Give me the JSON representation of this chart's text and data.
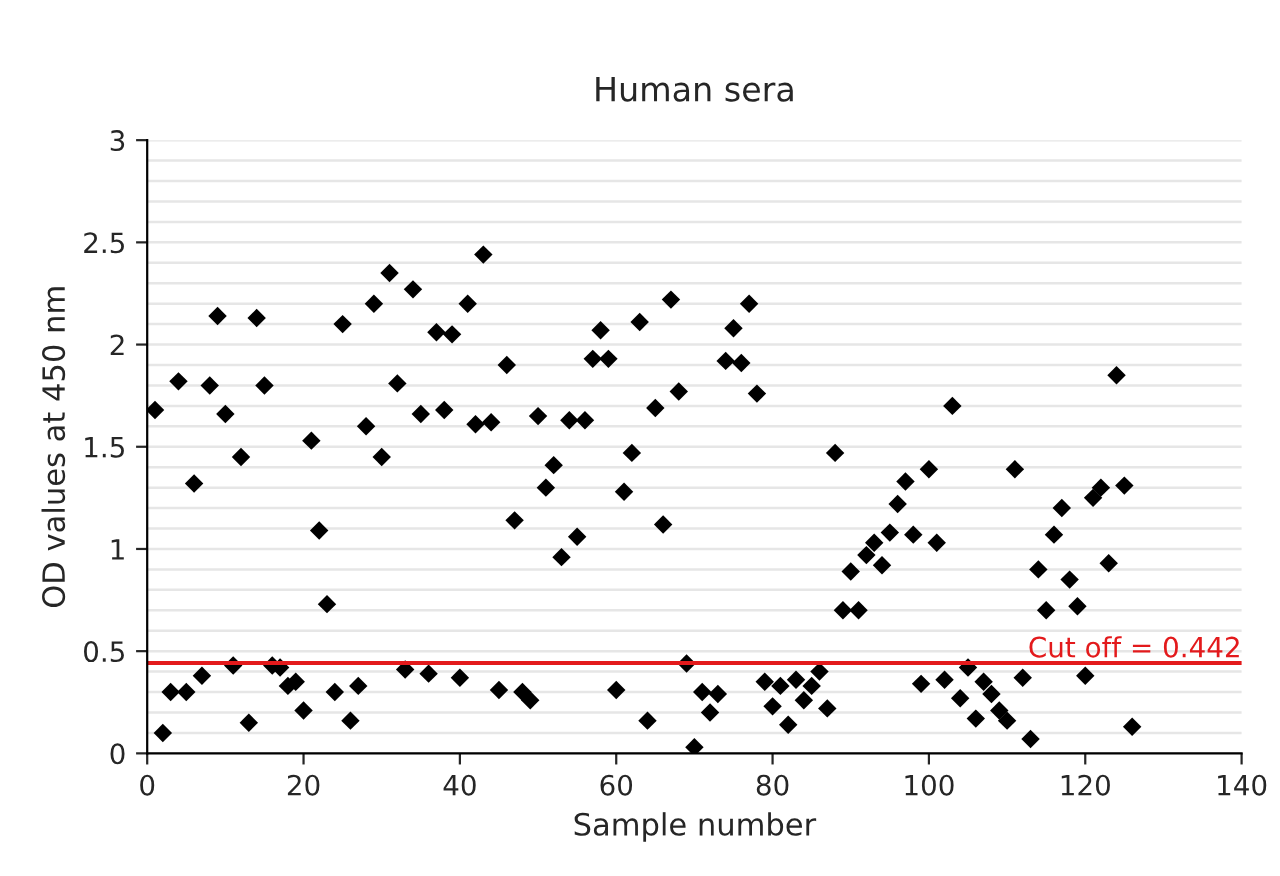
{
  "chart_data": {
    "type": "scatter",
    "title": "Human sera",
    "xlabel": "Sample number",
    "ylabel": "OD values at 450 nm",
    "x": [
      1,
      2,
      3,
      4,
      5,
      6,
      7,
      8,
      9,
      10,
      11,
      12,
      13,
      14,
      15,
      16,
      17,
      18,
      19,
      20,
      21,
      22,
      23,
      24,
      25,
      26,
      27,
      28,
      29,
      30,
      31,
      32,
      33,
      34,
      35,
      36,
      37,
      38,
      39,
      40,
      41,
      42,
      43,
      44,
      45,
      46,
      47,
      48,
      49,
      50,
      51,
      52,
      53,
      54,
      55,
      56,
      57,
      58,
      59,
      60,
      61,
      62,
      63,
      64,
      65,
      66,
      67,
      68,
      69,
      70,
      71,
      72,
      73,
      74,
      75,
      76,
      77,
      78,
      79,
      80,
      81,
      82,
      83,
      84,
      85,
      86,
      87,
      88,
      89,
      90,
      91,
      92,
      93,
      94,
      95,
      96,
      97,
      98,
      99,
      100,
      101,
      102,
      103,
      104,
      105,
      106,
      107,
      108,
      109,
      110,
      111,
      112,
      113,
      114,
      115,
      116,
      117,
      118,
      119,
      120,
      121,
      122,
      123,
      124,
      125,
      126
    ],
    "series": [
      {
        "color": "#000000",
        "values": [
          1.68,
          0.1,
          0.3,
          1.82,
          0.3,
          1.32,
          0.38,
          1.8,
          2.14,
          1.66,
          0.43,
          1.45,
          0.15,
          2.13,
          1.8,
          0.43,
          0.42,
          0.33,
          0.35,
          0.21,
          1.53,
          1.09,
          0.73,
          0.3,
          2.1,
          0.16,
          0.33,
          1.6,
          2.2,
          1.45,
          2.35,
          1.81,
          0.41,
          2.27,
          1.66,
          0.39,
          2.06,
          1.68,
          2.05,
          0.37,
          2.2,
          1.61,
          2.44,
          1.62,
          0.31,
          1.9,
          1.14,
          0.3,
          0.26,
          1.65,
          1.3,
          1.41,
          0.96,
          1.63,
          1.06,
          1.63,
          1.93,
          2.07,
          1.93,
          0.31,
          1.28,
          1.47,
          2.11,
          0.16,
          1.69,
          1.12,
          2.22,
          1.77,
          0.44,
          0.03,
          0.3,
          0.2,
          0.29,
          1.92,
          2.08,
          1.91,
          2.2,
          1.76,
          0.35,
          0.23,
          0.33,
          0.14,
          0.36,
          0.26,
          0.33,
          0.4,
          0.22,
          1.47,
          0.7,
          0.89,
          0.7,
          0.97,
          1.03,
          0.92,
          1.08,
          1.22,
          1.33,
          1.07,
          0.34,
          1.39,
          1.03,
          0.36,
          1.7,
          0.27,
          0.42,
          0.17,
          0.35,
          0.29,
          0.21,
          0.16,
          1.39,
          0.37,
          0.07,
          0.9,
          0.7,
          1.07,
          1.2,
          0.85,
          0.72,
          0.38,
          1.25,
          1.3,
          0.93,
          1.85,
          1.31,
          0.13
        ]
      }
    ],
    "xlim": [
      0,
      140
    ],
    "xticks": [
      0,
      20,
      40,
      60,
      80,
      100,
      120,
      140
    ],
    "ylim": [
      0,
      3
    ],
    "yticks": [
      0,
      0.5,
      1,
      1.5,
      2,
      2.5,
      3
    ],
    "ref_lines": [
      {
        "axis": "y",
        "value": 0.442,
        "label": "Cut off = 0.442",
        "color": "#e31a1c"
      }
    ],
    "marker": "diamond",
    "grid": "y"
  }
}
